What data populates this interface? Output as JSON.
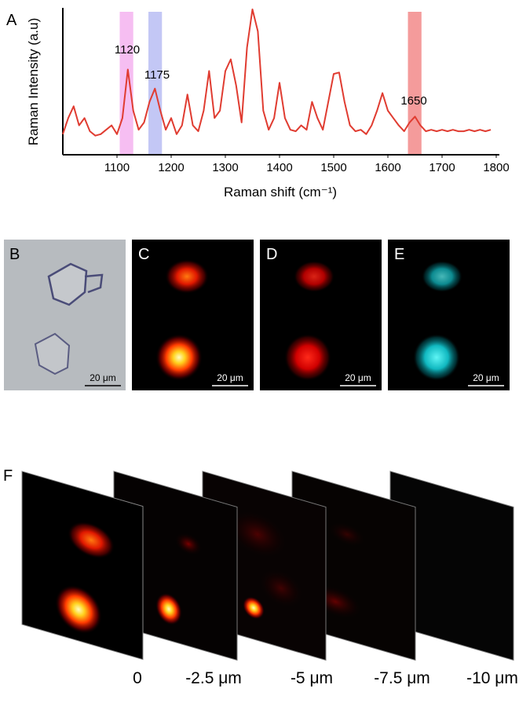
{
  "chart_data": {
    "type": "line",
    "panel_label": "A",
    "ylabel": "Raman Intensity (a.u)",
    "xlabel": "Raman shift (cm⁻¹)",
    "xlim": [
      1000,
      1800
    ],
    "ylim": [
      0,
      100
    ],
    "xticks": [
      1100,
      1200,
      1300,
      1400,
      1500,
      1600,
      1700,
      1800
    ],
    "color": "#e03c31",
    "x": [
      1000,
      1010,
      1020,
      1030,
      1040,
      1050,
      1060,
      1070,
      1080,
      1090,
      1100,
      1110,
      1120,
      1130,
      1140,
      1150,
      1160,
      1170,
      1180,
      1190,
      1200,
      1210,
      1220,
      1230,
      1240,
      1250,
      1260,
      1270,
      1280,
      1290,
      1300,
      1310,
      1320,
      1330,
      1340,
      1350,
      1360,
      1370,
      1380,
      1390,
      1400,
      1410,
      1420,
      1430,
      1440,
      1450,
      1460,
      1470,
      1480,
      1490,
      1500,
      1510,
      1520,
      1530,
      1540,
      1550,
      1560,
      1570,
      1580,
      1590,
      1600,
      1610,
      1620,
      1630,
      1640,
      1650,
      1660,
      1670,
      1680,
      1690,
      1700,
      1710,
      1720,
      1730,
      1740,
      1750,
      1760,
      1770,
      1780,
      1790
    ],
    "values": [
      14,
      25,
      33,
      20,
      25,
      16,
      13,
      14,
      17,
      20,
      14,
      25,
      58,
      30,
      17,
      22,
      36,
      45,
      30,
      17,
      25,
      14,
      20,
      41,
      20,
      16,
      30,
      57,
      25,
      30,
      57,
      65,
      47,
      22,
      73,
      99,
      84,
      30,
      17,
      25,
      49,
      25,
      17,
      16,
      20,
      17,
      36,
      25,
      17,
      36,
      55,
      56,
      36,
      20,
      16,
      17,
      14,
      20,
      30,
      42,
      30,
      25,
      20,
      16,
      22,
      26,
      20,
      16,
      17,
      16,
      17,
      16,
      17,
      16,
      16,
      17,
      16,
      17,
      16,
      17
    ],
    "highlights": [
      {
        "range": [
          1105,
          1130
        ],
        "color": "#f5b3f0"
      },
      {
        "range": [
          1158,
          1183
        ],
        "color": "#b9bdf3"
      },
      {
        "range": [
          1637,
          1662
        ],
        "color": "#f28a8a"
      }
    ],
    "annotations": [
      "1120",
      "1175",
      "1650"
    ]
  },
  "figure": {
    "panels": [
      {
        "letter": "B",
        "scale_bar": "20 μm"
      },
      {
        "letter": "C",
        "scale_bar": "20 μm"
      },
      {
        "letter": "D",
        "scale_bar": "20 μm"
      },
      {
        "letter": "E",
        "scale_bar": "20 μm"
      }
    ],
    "depth_panel": {
      "letter": "F",
      "depths": [
        "0",
        "-2.5 μm",
        "-5 μm",
        "-7.5 μm",
        "-10 μm"
      ]
    }
  }
}
